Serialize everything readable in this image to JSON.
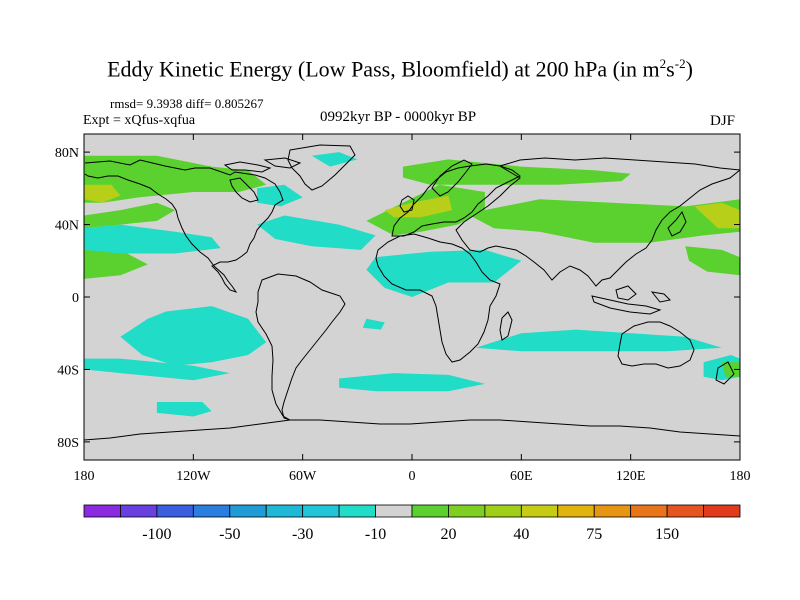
{
  "header": {
    "title_main": "Eddy Kinetic Energy (Low Pass, Bloomfield) at 200 hPa (in m",
    "title_sup1": "2",
    "title_mid": "s",
    "title_sup2": "-2",
    "title_end": ")",
    "stats": "rmsd= 9.3938 diff= 0.805267",
    "expt": "Expt = xQfus-xqfua",
    "period": "0992kyr BP - 0000kyr BP",
    "season": "DJF"
  },
  "colors": {
    "land_ocean_neutral": "#d3d3d3",
    "coastline": "#000000",
    "negative_fill": "#21dcc6",
    "negative_dark_fill": "#22c4da",
    "positive_fill": "#5ad12f",
    "positive_yellow_fill": "#b8cf1a"
  },
  "chart_data": {
    "type": "contour_map",
    "title": "Eddy Kinetic Energy (Low Pass, Bloomfield) at 200 hPa (in m^2 s^-2)",
    "projection": "cylindrical equidistant",
    "x_axis": {
      "range": [
        -180,
        180
      ],
      "ticks": [
        {
          "value": -180,
          "label": "180"
        },
        {
          "value": -120,
          "label": "120W"
        },
        {
          "value": -60,
          "label": "60W"
        },
        {
          "value": 0,
          "label": "0"
        },
        {
          "value": 60,
          "label": "60E"
        },
        {
          "value": 120,
          "label": "120E"
        },
        {
          "value": 180,
          "label": "180"
        }
      ]
    },
    "y_axis": {
      "range": [
        -90,
        90
      ],
      "ticks": [
        {
          "value": 80,
          "label": "80N"
        },
        {
          "value": 40,
          "label": "40N"
        },
        {
          "value": 0,
          "label": "0"
        },
        {
          "value": -40,
          "label": "40S"
        },
        {
          "value": -80,
          "label": "80S"
        }
      ]
    },
    "colorbar": {
      "colors": [
        "#8a2be2",
        "#6a3fe0",
        "#3a5ee0",
        "#2a7ee0",
        "#1f9cd8",
        "#1fb8d6",
        "#22c4da",
        "#21dcc6",
        "#d3d3d3",
        "#5ad12f",
        "#7fcf22",
        "#a0cf1a",
        "#c6cc14",
        "#e2b20f",
        "#e89514",
        "#e8751a",
        "#e6551f",
        "#e23a1c"
      ],
      "tick_labels": [
        {
          "boundary": 2,
          "label": "-100"
        },
        {
          "boundary": 4,
          "label": "-50"
        },
        {
          "boundary": 6,
          "label": "-30"
        },
        {
          "boundary": 8,
          "label": "-10"
        },
        {
          "boundary": 10,
          "label": "20"
        },
        {
          "boundary": 12,
          "label": "40"
        },
        {
          "boundary": 14,
          "label": "75"
        },
        {
          "boundary": 16,
          "label": "150"
        }
      ]
    },
    "regions": [
      {
        "sign": "positive",
        "level": "10 to 20",
        "lon_lat": [
          [
            -180,
            78
          ],
          [
            -140,
            78
          ],
          [
            -110,
            72
          ],
          [
            -90,
            70
          ],
          [
            -80,
            62
          ],
          [
            -95,
            58
          ],
          [
            -120,
            58
          ],
          [
            -150,
            55
          ],
          [
            -170,
            52
          ],
          [
            -180,
            52
          ]
        ]
      },
      {
        "sign": "positive",
        "level": "20 to 40",
        "lon_lat": [
          [
            -180,
            62
          ],
          [
            -165,
            62
          ],
          [
            -160,
            56
          ],
          [
            -170,
            52
          ],
          [
            -180,
            54
          ]
        ]
      },
      {
        "sign": "positive",
        "level": "10 to 20",
        "lon_lat": [
          [
            -180,
            45
          ],
          [
            -160,
            48
          ],
          [
            -140,
            52
          ],
          [
            -130,
            48
          ],
          [
            -140,
            42
          ],
          [
            -160,
            40
          ],
          [
            -180,
            38
          ]
        ]
      },
      {
        "sign": "positive",
        "level": "20 to 40",
        "lon_lat": [
          [
            -180,
            27
          ],
          [
            -170,
            26
          ],
          [
            -165,
            20
          ],
          [
            -170,
            15
          ],
          [
            -180,
            14
          ]
        ]
      },
      {
        "sign": "positive",
        "level": "10 to 20",
        "lon_lat": [
          [
            -180,
            30
          ],
          [
            -160,
            26
          ],
          [
            -145,
            18
          ],
          [
            -160,
            12
          ],
          [
            -180,
            10
          ]
        ]
      },
      {
        "sign": "negative",
        "level": "-10 to -30",
        "lon_lat": [
          [
            -180,
            38
          ],
          [
            -160,
            40
          ],
          [
            -130,
            36
          ],
          [
            -110,
            33
          ],
          [
            -105,
            27
          ],
          [
            -130,
            24
          ],
          [
            -160,
            24
          ],
          [
            -180,
            26
          ]
        ]
      },
      {
        "sign": "negative",
        "level": "-10 to -30",
        "lon_lat": [
          [
            -85,
            60
          ],
          [
            -70,
            62
          ],
          [
            -60,
            55
          ],
          [
            -72,
            50
          ],
          [
            -85,
            52
          ]
        ]
      },
      {
        "sign": "negative",
        "level": "-10 to -30",
        "lon_lat": [
          [
            -55,
            78
          ],
          [
            -40,
            80
          ],
          [
            -30,
            76
          ],
          [
            -45,
            72
          ]
        ]
      },
      {
        "sign": "negative",
        "level": "-10 to -30",
        "lon_lat": [
          [
            -85,
            40
          ],
          [
            -70,
            45
          ],
          [
            -40,
            40
          ],
          [
            -20,
            34
          ],
          [
            -28,
            26
          ],
          [
            -55,
            28
          ],
          [
            -75,
            32
          ]
        ]
      },
      {
        "sign": "negative",
        "level": "-10 to -30",
        "lon_lat": [
          [
            -20,
            22
          ],
          [
            10,
            25
          ],
          [
            40,
            26
          ],
          [
            60,
            20
          ],
          [
            45,
            8
          ],
          [
            20,
            8
          ],
          [
            0,
            0
          ],
          [
            -15,
            5
          ],
          [
            -25,
            15
          ]
        ]
      },
      {
        "sign": "positive",
        "level": "10 to 20",
        "lon_lat": [
          [
            -25,
            42
          ],
          [
            -5,
            52
          ],
          [
            15,
            62
          ],
          [
            40,
            58
          ],
          [
            40,
            48
          ],
          [
            25,
            40
          ],
          [
            5,
            36
          ],
          [
            -10,
            34
          ]
        ]
      },
      {
        "sign": "positive",
        "level": "20 to 40",
        "lon_lat": [
          [
            -15,
            48
          ],
          [
            0,
            52
          ],
          [
            20,
            56
          ],
          [
            22,
            48
          ],
          [
            5,
            44
          ],
          [
            -10,
            44
          ]
        ]
      },
      {
        "sign": "positive",
        "level": "10 to 20",
        "lon_lat": [
          [
            -5,
            72
          ],
          [
            20,
            76
          ],
          [
            60,
            72
          ],
          [
            100,
            70
          ],
          [
            120,
            68
          ],
          [
            115,
            64
          ],
          [
            80,
            62
          ],
          [
            40,
            62
          ],
          [
            10,
            62
          ],
          [
            -5,
            66
          ]
        ]
      },
      {
        "sign": "positive",
        "level": "10 to 20",
        "lon_lat": [
          [
            30,
            46
          ],
          [
            70,
            54
          ],
          [
            110,
            52
          ],
          [
            150,
            50
          ],
          [
            180,
            54
          ],
          [
            180,
            36
          ],
          [
            160,
            34
          ],
          [
            130,
            30
          ],
          [
            100,
            30
          ],
          [
            70,
            36
          ],
          [
            45,
            38
          ]
        ]
      },
      {
        "sign": "positive",
        "level": "20 to 40",
        "lon_lat": [
          [
            155,
            50
          ],
          [
            170,
            52
          ],
          [
            180,
            48
          ],
          [
            180,
            38
          ],
          [
            168,
            38
          ]
        ]
      },
      {
        "sign": "positive",
        "level": "10 to 20",
        "lon_lat": [
          [
            150,
            28
          ],
          [
            170,
            26
          ],
          [
            180,
            22
          ],
          [
            180,
            12
          ],
          [
            162,
            14
          ],
          [
            152,
            20
          ]
        ]
      },
      {
        "sign": "negative",
        "level": "-10 to -30",
        "lon_lat": [
          [
            -135,
            -8
          ],
          [
            -110,
            -5
          ],
          [
            -90,
            -12
          ],
          [
            -80,
            -25
          ],
          [
            -90,
            -32
          ],
          [
            -110,
            -36
          ],
          [
            -130,
            -38
          ],
          [
            -148,
            -32
          ],
          [
            -160,
            -22
          ],
          [
            -145,
            -12
          ]
        ]
      },
      {
        "sign": "negative",
        "level": "-10 to -30",
        "lon_lat": [
          [
            -180,
            -34
          ],
          [
            -160,
            -34
          ],
          [
            -120,
            -38
          ],
          [
            -100,
            -42
          ],
          [
            -120,
            -46
          ],
          [
            -160,
            -42
          ],
          [
            -180,
            -40
          ]
        ]
      },
      {
        "sign": "negative",
        "level": "-10 to -30",
        "lon_lat": [
          [
            -140,
            -58
          ],
          [
            -115,
            -58
          ],
          [
            -110,
            -63
          ],
          [
            -120,
            -66
          ],
          [
            -140,
            -64
          ]
        ]
      },
      {
        "sign": "negative",
        "level": "-10 to -30",
        "lon_lat": [
          [
            -25,
            -12
          ],
          [
            -15,
            -14
          ],
          [
            -17,
            -18
          ],
          [
            -27,
            -17
          ]
        ]
      },
      {
        "sign": "negative",
        "level": "-10 to -30",
        "lon_lat": [
          [
            -40,
            -45
          ],
          [
            -10,
            -42
          ],
          [
            20,
            -43
          ],
          [
            40,
            -48
          ],
          [
            20,
            -52
          ],
          [
            -20,
            -52
          ],
          [
            -40,
            -50
          ]
        ]
      },
      {
        "sign": "negative",
        "level": "-10 to -30",
        "lon_lat": [
          [
            35,
            -28
          ],
          [
            60,
            -20
          ],
          [
            90,
            -18
          ],
          [
            120,
            -20
          ],
          [
            150,
            -22
          ],
          [
            170,
            -28
          ],
          [
            140,
            -30
          ],
          [
            100,
            -30
          ],
          [
            60,
            -30
          ]
        ]
      },
      {
        "sign": "negative",
        "level": "-10 to -30",
        "lon_lat": [
          [
            160,
            -36
          ],
          [
            175,
            -32
          ],
          [
            180,
            -34
          ],
          [
            180,
            -44
          ],
          [
            170,
            -46
          ],
          [
            160,
            -44
          ]
        ]
      },
      {
        "sign": "positive",
        "level": "10 to 20",
        "lon_lat": [
          [
            170,
            -36
          ],
          [
            180,
            -36
          ],
          [
            180,
            -44
          ],
          [
            172,
            -44
          ]
        ]
      }
    ]
  }
}
